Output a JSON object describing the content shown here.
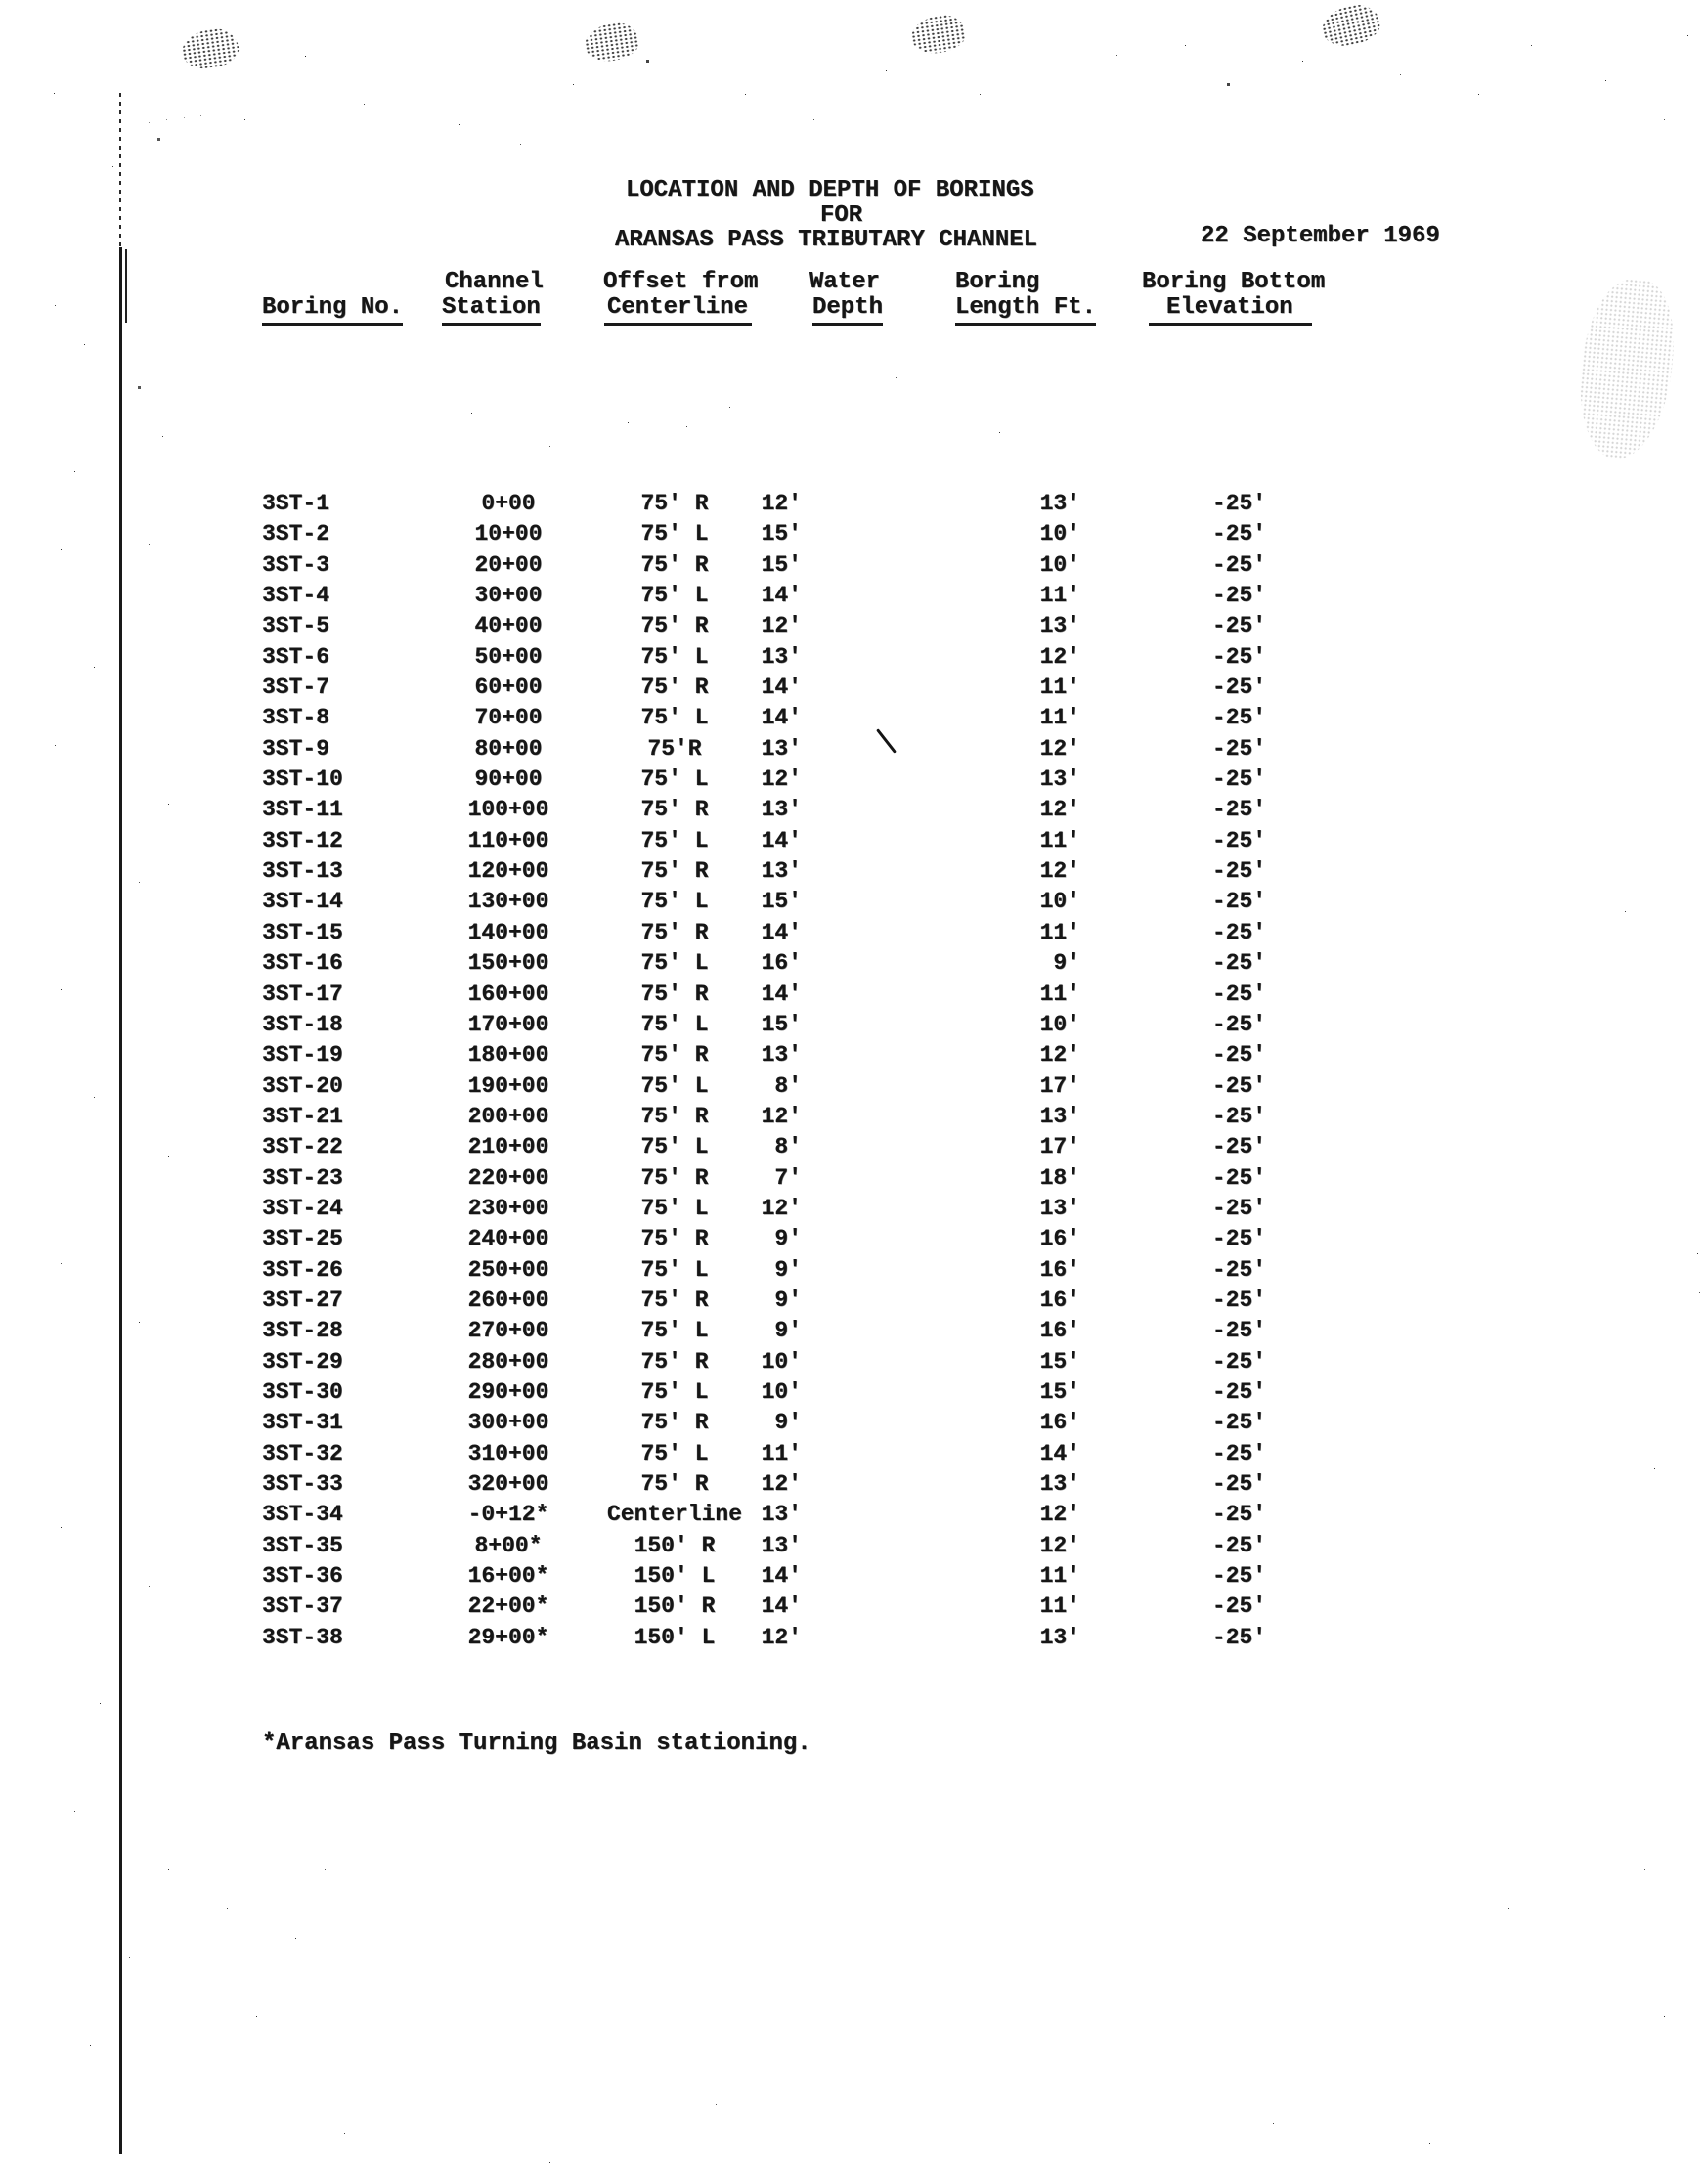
{
  "page": {
    "title_line1": "LOCATION AND DEPTH OF BORINGS",
    "title_line2": "FOR",
    "title_line3": "ARANSAS PASS TRIBUTARY CHANNEL",
    "date": "22 September 1969",
    "footnote": "*Aransas Pass Turning Basin stationing."
  },
  "table": {
    "headers": {
      "boring_no": "Boring No.",
      "channel_station": [
        "Channel",
        "Station"
      ],
      "offset_from_centerline": [
        "Offset from",
        "Centerline"
      ],
      "water_depth": [
        "Water",
        "Depth"
      ],
      "boring_length": [
        "Boring",
        "Length Ft."
      ],
      "boring_bottom_elevation": [
        "Boring Bottom",
        "Elevation"
      ]
    },
    "rows": [
      [
        "3ST-1",
        "0+00",
        "75' R",
        "12'",
        "13'",
        "-25'"
      ],
      [
        "3ST-2",
        "10+00",
        "75' L",
        "15'",
        "10'",
        "-25'"
      ],
      [
        "3ST-3",
        "20+00",
        "75' R",
        "15'",
        "10'",
        "-25'"
      ],
      [
        "3ST-4",
        "30+00",
        "75' L",
        "14'",
        "11'",
        "-25'"
      ],
      [
        "3ST-5",
        "40+00",
        "75' R",
        "12'",
        "13'",
        "-25'"
      ],
      [
        "3ST-6",
        "50+00",
        "75' L",
        "13'",
        "12'",
        "-25'"
      ],
      [
        "3ST-7",
        "60+00",
        "75' R",
        "14'",
        "11'",
        "-25'"
      ],
      [
        "3ST-8",
        "70+00",
        "75' L",
        "14'",
        "11'",
        "-25'"
      ],
      [
        "3ST-9",
        "80+00",
        "75'R",
        "13'",
        "12'",
        "-25'"
      ],
      [
        "3ST-10",
        "90+00",
        "75' L",
        "12'",
        "13'",
        "-25'"
      ],
      [
        "3ST-11",
        "100+00",
        "75' R",
        "13'",
        "12'",
        "-25'"
      ],
      [
        "3ST-12",
        "110+00",
        "75' L",
        "14'",
        "11'",
        "-25'"
      ],
      [
        "3ST-13",
        "120+00",
        "75' R",
        "13'",
        "12'",
        "-25'"
      ],
      [
        "3ST-14",
        "130+00",
        "75' L",
        "15'",
        "10'",
        "-25'"
      ],
      [
        "3ST-15",
        "140+00",
        "75' R",
        "14'",
        "11'",
        "-25'"
      ],
      [
        "3ST-16",
        "150+00",
        "75' L",
        "16'",
        "9'",
        "-25'"
      ],
      [
        "3ST-17",
        "160+00",
        "75' R",
        "14'",
        "11'",
        "-25'"
      ],
      [
        "3ST-18",
        "170+00",
        "75' L",
        "15'",
        "10'",
        "-25'"
      ],
      [
        "3ST-19",
        "180+00",
        "75' R",
        "13'",
        "12'",
        "-25'"
      ],
      [
        "3ST-20",
        "190+00",
        "75' L",
        "8'",
        "17'",
        "-25'"
      ],
      [
        "3ST-21",
        "200+00",
        "75' R",
        "12'",
        "13'",
        "-25'"
      ],
      [
        "3ST-22",
        "210+00",
        "75' L",
        "8'",
        "17'",
        "-25'"
      ],
      [
        "3ST-23",
        "220+00",
        "75' R",
        "7'",
        "18'",
        "-25'"
      ],
      [
        "3ST-24",
        "230+00",
        "75' L",
        "12'",
        "13'",
        "-25'"
      ],
      [
        "3ST-25",
        "240+00",
        "75' R",
        "9'",
        "16'",
        "-25'"
      ],
      [
        "3ST-26",
        "250+00",
        "75' L",
        "9'",
        "16'",
        "-25'"
      ],
      [
        "3ST-27",
        "260+00",
        "75' R",
        "9'",
        "16'",
        "-25'"
      ],
      [
        "3ST-28",
        "270+00",
        "75' L",
        "9'",
        "16'",
        "-25'"
      ],
      [
        "3ST-29",
        "280+00",
        "75' R",
        "10'",
        "15'",
        "-25'"
      ],
      [
        "3ST-30",
        "290+00",
        "75' L",
        "10'",
        "15'",
        "-25'"
      ],
      [
        "3ST-31",
        "300+00",
        "75' R",
        "9'",
        "16'",
        "-25'"
      ],
      [
        "3ST-32",
        "310+00",
        "75' L",
        "11'",
        "14'",
        "-25'"
      ],
      [
        "3ST-33",
        "320+00",
        "75' R",
        "12'",
        "13'",
        "-25'"
      ],
      [
        "3ST-34",
        "-0+12*",
        "Centerline",
        "13'",
        "12'",
        "-25'"
      ],
      [
        "3ST-35",
        "8+00*",
        "150' R",
        "13'",
        "12'",
        "-25'"
      ],
      [
        "3ST-36",
        "16+00*",
        "150' L",
        "14'",
        "11'",
        "-25'"
      ],
      [
        "3ST-37",
        "22+00*",
        "150' R",
        "14'",
        "11'",
        "-25'"
      ],
      [
        "3ST-38",
        "29+00*",
        "150' L",
        "12'",
        "13'",
        "-25'"
      ]
    ]
  }
}
